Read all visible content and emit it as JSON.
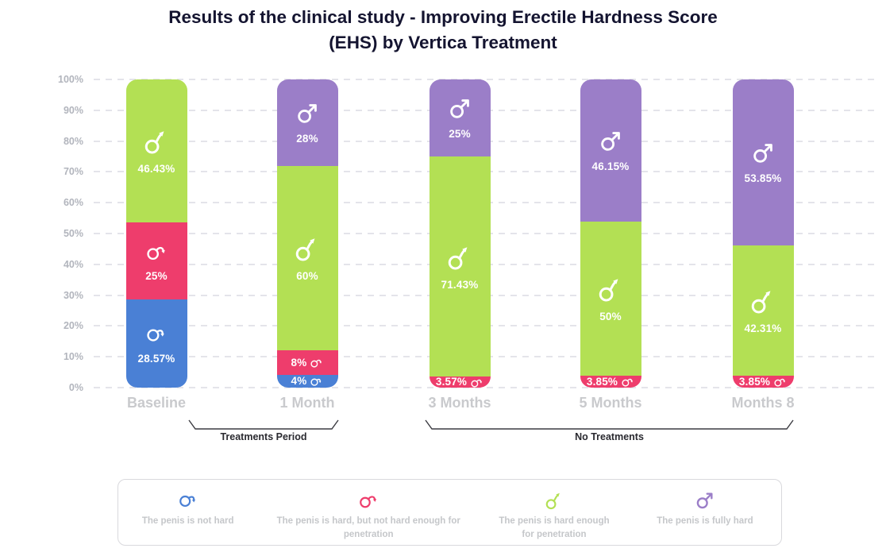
{
  "title": {
    "line1": "Results of the clinical study - Improving Erectile Hardness Score",
    "line2": "(EHS) by Vertica Treatment"
  },
  "chart_data": {
    "type": "stacked-bar",
    "title": "Results of the clinical study - Improving Erectile Hardness Score (EHS) by Vertica Treatment",
    "categories": [
      "Baseline",
      "1 Month",
      "3 Months",
      "5 Months",
      "Months 8"
    ],
    "y_ticks": [
      "100%",
      "90%",
      "80%",
      "70%",
      "60%",
      "50%",
      "40%",
      "30%",
      "20%",
      "10%",
      "0%"
    ],
    "ylim": [
      0,
      100
    ],
    "y_unit": "%",
    "grid": "horizontal-dashed",
    "legend_position": "bottom",
    "stack_order_bottom_to_top": [
      "not_hard",
      "hard_not_enough",
      "hard_enough",
      "fully_hard"
    ],
    "series": [
      {
        "key": "not_hard",
        "legend_label": "The penis is not hard",
        "color": "#4a80d5",
        "icon": "male-droop",
        "values": [
          28.57,
          4,
          null,
          null,
          null
        ],
        "labels": [
          "28.57%",
          "4%",
          null,
          null,
          null
        ]
      },
      {
        "key": "hard_not_enough",
        "legend_label": "The penis is hard, but not hard enough for penetration",
        "color": "#ee3d6c",
        "icon": "male-semi",
        "values": [
          25,
          8,
          3.57,
          3.85,
          3.85
        ],
        "labels": [
          "25%",
          "8%",
          "3.57%",
          "3.85%",
          "3.85%"
        ]
      },
      {
        "key": "hard_enough",
        "legend_label": "The penis is hard enough for penetration",
        "color": "#b3e054",
        "icon": "male-rising",
        "values": [
          46.43,
          60,
          71.43,
          50,
          42.31
        ],
        "labels": [
          "46.43%",
          "60%",
          "71.43%",
          "50%",
          "42.31%"
        ]
      },
      {
        "key": "fully_hard",
        "legend_label": "The penis is fully hard",
        "color": "#9b7ec8",
        "icon": "male-straight",
        "values": [
          null,
          28,
          25,
          46.15,
          53.85
        ],
        "labels": [
          null,
          "28%",
          "25%",
          "46.15%",
          "53.85%"
        ]
      }
    ],
    "group_brackets": [
      {
        "label": "Treatments Period",
        "from": "Baseline",
        "to": "1 Month"
      },
      {
        "label": "No Treatments",
        "from": "3 Months",
        "to": "Months 8"
      }
    ]
  },
  "legend": {
    "items": [
      {
        "key": "not_hard",
        "icon": "male-droop",
        "color": "#4a80d5",
        "label": "The penis is not hard"
      },
      {
        "key": "hard_not_enough",
        "icon": "male-semi",
        "color": "#ee3d6c",
        "label": "The penis is hard, but not hard enough for penetration"
      },
      {
        "key": "hard_enough",
        "icon": "male-rising",
        "color": "#b3e054",
        "label": "The penis is hard enough for penetration"
      },
      {
        "key": "fully_hard",
        "icon": "male-straight",
        "color": "#9b7ec8",
        "label": "The penis is fully hard"
      }
    ]
  }
}
